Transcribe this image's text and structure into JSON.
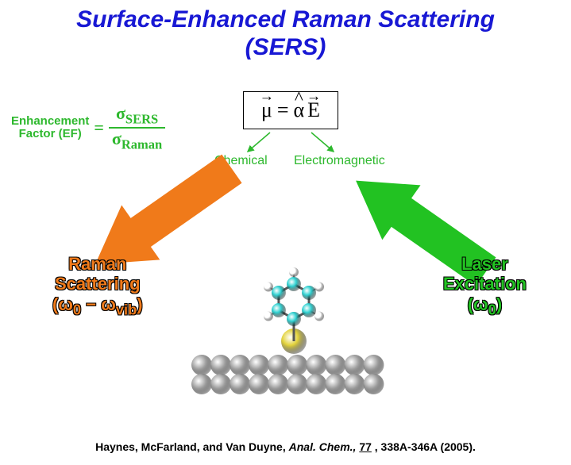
{
  "title": {
    "line1": "Surface-Enhanced Raman Scattering",
    "line2": "(SERS)",
    "color": "#1818d4",
    "fontsize": 30
  },
  "ef": {
    "label_line1": "Enhancement",
    "label_line2": "Factor (EF)",
    "equals": "=",
    "num_sigma": "σ",
    "num_sub": "SERS",
    "den_sigma": "σ",
    "den_sub": "Raman",
    "color": "#2db82d",
    "label_fontsize": 15,
    "frac_fontsize": 22
  },
  "equation": {
    "mu": "μ",
    "eq": "=",
    "alpha": "α",
    "E": "E",
    "fontsize": 26,
    "color": "#000000"
  },
  "mechanisms": {
    "chemical": "Chemical",
    "electromagnetic": "Electromagnetic",
    "color": "#2db82d",
    "fontsize": 16,
    "arrow_color": "#2db82d"
  },
  "raman": {
    "line1": "Raman",
    "line2": "Scattering",
    "line3_html": "(ω<sub>0</sub> − ω<sub>vib</sub>)",
    "color": "#f07a1a",
    "fontsize": 22,
    "arrow_color": "#f07a1a"
  },
  "laser": {
    "line1": "Laser",
    "line2": "Excitation",
    "line3_html": "(ω<sub>0</sub>)",
    "color": "#22c222",
    "fontsize": 22,
    "arrow_color": "#22c222"
  },
  "citation": {
    "authors": "Haynes, McFarland, and Van Duyne, ",
    "journal": "Anal. Chem.,",
    "volume": "77",
    "pages": ", 338A-346A (2005)."
  },
  "molecule": {
    "substrate_color": "#a9a9a9",
    "substrate_stroke": "#6e6e6e",
    "sulfur_color": "#e2d23a",
    "carbon_color": "#2ed1d1",
    "hydrogen_color": "#ffffff",
    "hydrogen_stroke": "#c8c8c8",
    "substrate_rows": 2,
    "substrate_cols": 10,
    "sphere_radius": 13
  }
}
